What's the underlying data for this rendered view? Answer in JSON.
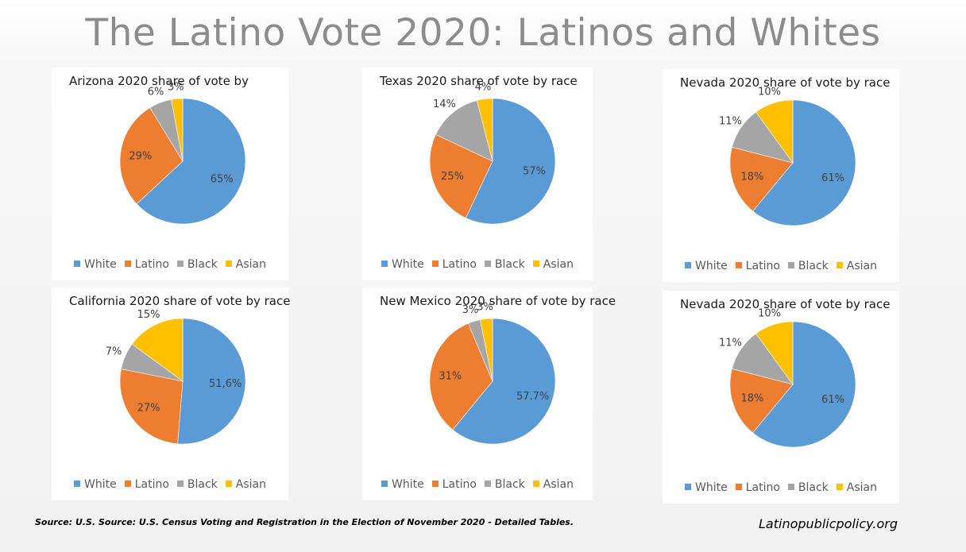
{
  "title": "The Latino Vote 2020: Latinos and Whites",
  "source": "Source: U.S. Source: U.S. Census  Voting and Registration in the Election of November 2020 - Detailed Tables.",
  "site": "Latinopublicpolicy.org",
  "colors": {
    "White": "#5b9bd5",
    "Latino": "#ed7d31",
    "Black": "#a5a5a5",
    "Asian": "#ffc000"
  },
  "chart_data": [
    {
      "type": "pie",
      "title": "Arizona 2020 share of vote by",
      "categories": [
        "White",
        "Latino",
        "Black",
        "Asian"
      ],
      "values": [
        65,
        29,
        6,
        3
      ],
      "labels": [
        "65%",
        "29%",
        "6%",
        "3%"
      ]
    },
    {
      "type": "pie",
      "title": "Texas 2020 share of vote by race",
      "categories": [
        "White",
        "Latino",
        "Black",
        "Asian"
      ],
      "values": [
        57,
        25,
        14,
        4
      ],
      "labels": [
        "57%",
        "25%",
        "14%",
        "4%"
      ]
    },
    {
      "type": "pie",
      "title": "Nevada 2020 share of vote by race",
      "categories": [
        "White",
        "Latino",
        "Black",
        "Asian"
      ],
      "values": [
        61,
        18,
        11,
        10
      ],
      "labels": [
        "61%",
        "18%",
        "11%",
        "10%"
      ]
    },
    {
      "type": "pie",
      "title": "California 2020 share of vote by race",
      "categories": [
        "White",
        "Latino",
        "Black",
        "Asian"
      ],
      "values": [
        51.6,
        27,
        7,
        15
      ],
      "labels": [
        "51,6%",
        "27%",
        "7%",
        "15%"
      ]
    },
    {
      "type": "pie",
      "title": "New Mexico 2020 share of vote by race",
      "categories": [
        "White",
        "Latino",
        "Black",
        "Asian"
      ],
      "values": [
        57.7,
        31,
        3,
        3
      ],
      "labels": [
        "57.7%",
        "31%",
        "3%",
        "3%"
      ]
    },
    {
      "type": "pie",
      "title": "Nevada 2020 share of vote by race",
      "categories": [
        "White",
        "Latino",
        "Black",
        "Asian"
      ],
      "values": [
        61,
        18,
        11,
        10
      ],
      "labels": [
        "61%",
        "18%",
        "11%",
        "10%"
      ]
    }
  ]
}
